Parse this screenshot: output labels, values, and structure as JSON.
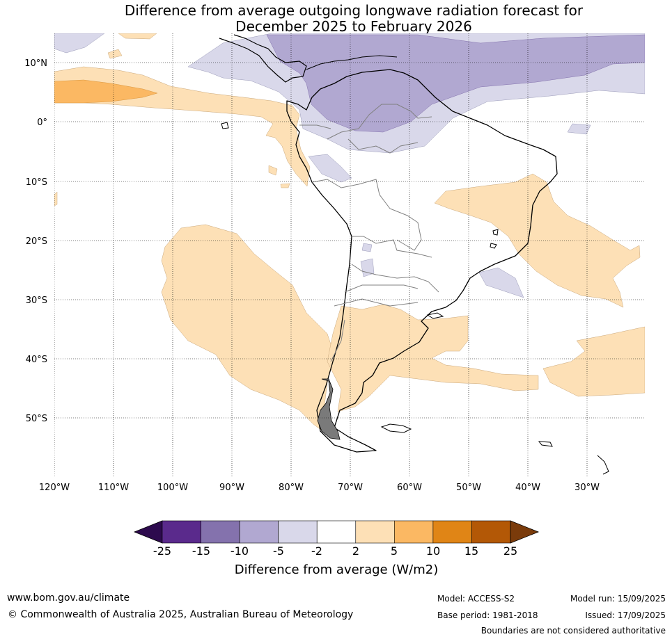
{
  "title_line1": "Difference from average outgoing longwave radiation forecast for",
  "title_line2": "December 2025 to February 2026",
  "lat_labels": [
    "10°N",
    "0°",
    "10°S",
    "20°S",
    "30°S",
    "40°S",
    "50°S"
  ],
  "lon_labels": [
    "120°W",
    "110°W",
    "100°W",
    "90°W",
    "80°W",
    "70°W",
    "60°W",
    "50°W",
    "40°W",
    "30°W"
  ],
  "colorbar": {
    "boundaries": [
      "-25",
      "-15",
      "-10",
      "-5",
      "-2",
      "2",
      "5",
      "10",
      "15",
      "25"
    ],
    "colors": [
      "#2d0a4e",
      "#5a2a8c",
      "#8472ad",
      "#b1a8d1",
      "#d9d8ea",
      "#ffffff",
      "#fde0b6",
      "#fbb863",
      "#e08516",
      "#b35806",
      "#7a3b0b"
    ],
    "title": "Difference from average (W/m2)"
  },
  "footer": {
    "website": "www.bom.gov.au/climate",
    "copyright": "© Commonwealth of Australia 2025, Australian Bureau of Meteorology",
    "model": "Model: ACCESS-S2",
    "base_period": "Base period: 1981-2018",
    "model_run": "Model run: 15/09/2025",
    "issued": "Issued: 17/09/2025",
    "disclaimer": "Boundaries are not considered authoritative"
  }
}
